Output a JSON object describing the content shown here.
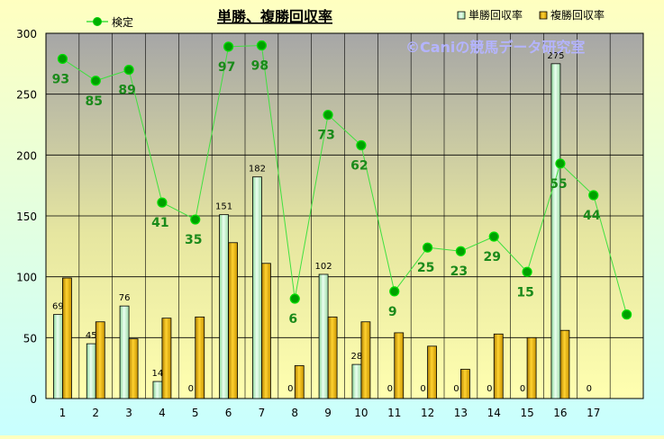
{
  "chart_data": {
    "type": "bar",
    "title": "単勝、複勝回収率",
    "watermark": "©Caniの競馬データ研究室",
    "categories": [
      "1",
      "2",
      "3",
      "4",
      "5",
      "6",
      "7",
      "8",
      "9",
      "10",
      "11",
      "12",
      "13",
      "14",
      "15",
      "16",
      "17"
    ],
    "ylim": [
      0,
      300
    ],
    "yticks": [
      0,
      50,
      100,
      150,
      200,
      250,
      300
    ],
    "legend_placement": "top",
    "grid": true,
    "series": [
      {
        "name": "単勝回収率",
        "kind": "bar",
        "color": "#c8f0c8",
        "values": [
          69,
          45,
          76,
          14,
          0,
          151,
          182,
          0,
          102,
          28,
          0,
          0,
          0,
          0,
          0,
          275,
          0
        ],
        "labels": [
          "69",
          "45",
          "76",
          "14",
          "0",
          "151",
          "182",
          "0",
          "102",
          "28",
          "0",
          "0",
          "0",
          "0",
          "0",
          "275",
          "0"
        ]
      },
      {
        "name": "複勝回収率",
        "kind": "bar",
        "color": "#e6b400",
        "values": [
          99,
          63,
          49,
          66,
          67,
          128,
          111,
          27,
          67,
          63,
          54,
          43,
          24,
          53,
          50,
          56,
          null
        ]
      },
      {
        "name": "検定",
        "kind": "line",
        "color": "#00c800",
        "x": [
          1,
          2,
          3,
          4,
          5,
          6,
          7,
          8,
          9,
          10,
          11,
          12,
          13,
          14,
          15,
          16,
          17,
          18
        ],
        "y": [
          279,
          261,
          270,
          161,
          147,
          289,
          290,
          82,
          233,
          208,
          88,
          124,
          121,
          133,
          104,
          193,
          167,
          69
        ],
        "labels": [
          "93",
          "85",
          "89",
          "41",
          "35",
          "97",
          "98",
          "6",
          "73",
          "62",
          "9",
          "25",
          "23",
          "29",
          "15",
          "55",
          "44",
          ""
        ]
      }
    ]
  },
  "colors": {
    "plot_top": "#a8a8a8",
    "plot_bottom": "#ffffb0",
    "line": "#40e040",
    "point": "#00b000",
    "label_green": "#1a8a1a",
    "watermark": "#b8b8ff"
  }
}
